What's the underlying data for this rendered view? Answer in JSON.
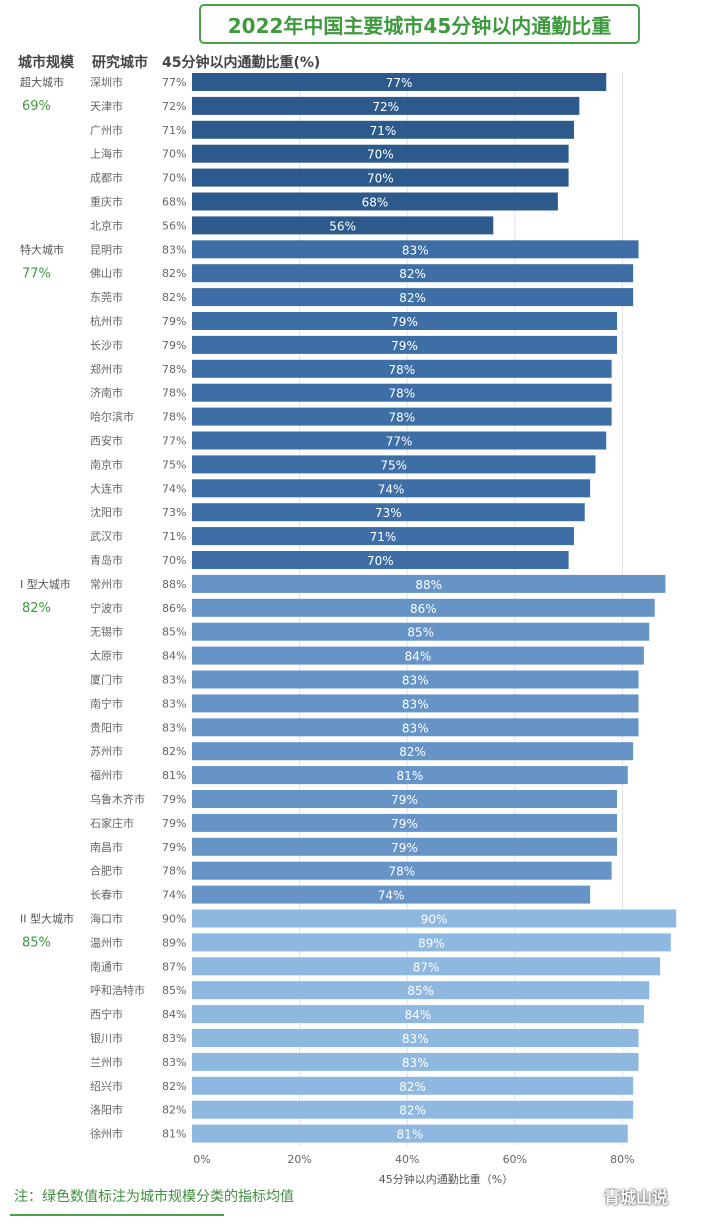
{
  "chart_data": {
    "type": "bar",
    "orientation": "horizontal",
    "title": "2022年中国主要城市45分钟以内通勤比重",
    "column_headers": [
      "城市规模",
      "研究城市",
      "45分钟以内通勤比重(%)"
    ],
    "xlabel": "45分钟以内通勤比重（%）",
    "xlim": [
      0,
      90
    ],
    "xticks": [
      "0%",
      "20%",
      "40%",
      "60%",
      "80%"
    ],
    "grid": true,
    "groups": [
      {
        "name": "超大城市",
        "mean": "69%",
        "color": "#2c5a8c",
        "cities": [
          {
            "city": "深圳市",
            "value": 77
          },
          {
            "city": "天津市",
            "value": 72
          },
          {
            "city": "广州市",
            "value": 71
          },
          {
            "city": "上海市",
            "value": 70
          },
          {
            "city": "成都市",
            "value": 70
          },
          {
            "city": "重庆市",
            "value": 68
          },
          {
            "city": "北京市",
            "value": 56
          }
        ]
      },
      {
        "name": "特大城市",
        "mean": "77%",
        "color": "#3d6ea6",
        "cities": [
          {
            "city": "昆明市",
            "value": 83
          },
          {
            "city": "佛山市",
            "value": 82
          },
          {
            "city": "东莞市",
            "value": 82
          },
          {
            "city": "杭州市",
            "value": 79
          },
          {
            "city": "长沙市",
            "value": 79
          },
          {
            "city": "郑州市",
            "value": 78
          },
          {
            "city": "济南市",
            "value": 78
          },
          {
            "city": "哈尔滨市",
            "value": 78
          },
          {
            "city": "西安市",
            "value": 77
          },
          {
            "city": "南京市",
            "value": 75
          },
          {
            "city": "大连市",
            "value": 74
          },
          {
            "city": "沈阳市",
            "value": 73
          },
          {
            "city": "武汉市",
            "value": 71
          },
          {
            "city": "青岛市",
            "value": 70
          }
        ]
      },
      {
        "name": "I 型大城市",
        "mean": "82%",
        "color": "#6694c7",
        "cities": [
          {
            "city": "常州市",
            "value": 88
          },
          {
            "city": "宁波市",
            "value": 86
          },
          {
            "city": "无锡市",
            "value": 85
          },
          {
            "city": "太原市",
            "value": 84
          },
          {
            "city": "厦门市",
            "value": 83
          },
          {
            "city": "南宁市",
            "value": 83
          },
          {
            "city": "贵阳市",
            "value": 83
          },
          {
            "city": "苏州市",
            "value": 82
          },
          {
            "city": "福州市",
            "value": 81
          },
          {
            "city": "乌鲁木齐市",
            "value": 79
          },
          {
            "city": "石家庄市",
            "value": 79
          },
          {
            "city": "南昌市",
            "value": 79
          },
          {
            "city": "合肥市",
            "value": 78
          },
          {
            "city": "长春市",
            "value": 74
          }
        ]
      },
      {
        "name": "II 型大城市",
        "mean": "85%",
        "color": "#8fb8e0",
        "cities": [
          {
            "city": "海口市",
            "value": 90
          },
          {
            "city": "温州市",
            "value": 89
          },
          {
            "city": "南通市",
            "value": 87
          },
          {
            "city": "呼和浩特市",
            "value": 85
          },
          {
            "city": "西宁市",
            "value": 84
          },
          {
            "city": "银川市",
            "value": 83
          },
          {
            "city": "兰州市",
            "value": 83
          },
          {
            "city": "绍兴市",
            "value": 82
          },
          {
            "city": "洛阳市",
            "value": 82
          },
          {
            "city": "徐州市",
            "value": 81
          }
        ]
      }
    ]
  },
  "note": "注：绿色数值标注为城市规模分类的指标均值",
  "watermark": "青城山说",
  "colors": {
    "accent_green": "#3f9a3f",
    "grid": "#e2e2e2",
    "label_text": "#666666"
  }
}
